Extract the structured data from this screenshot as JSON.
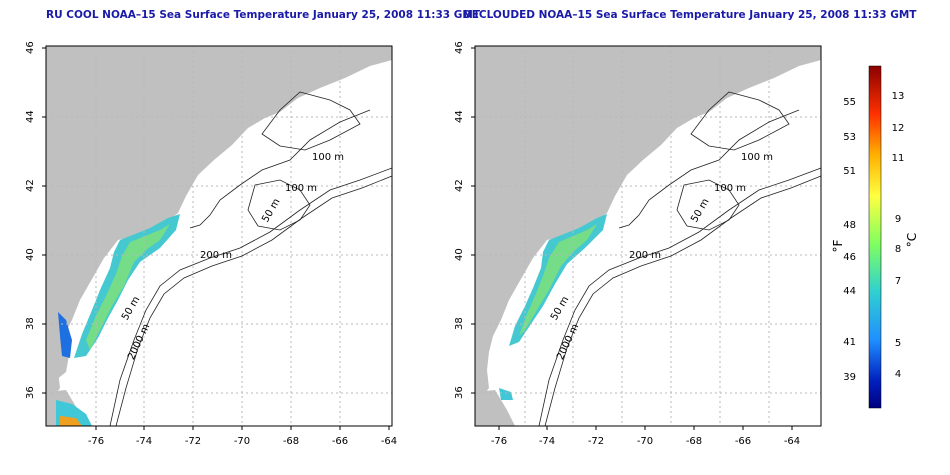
{
  "left_panel": {
    "title": "RU COOL NOAA–15 Sea Surface Temperature January 25, 2008 11:33 GMT"
  },
  "right_panel": {
    "title": "DECLOUDED NOAA–15 Sea Surface Temperature January 25, 2008 11:33 GMT"
  },
  "axes": {
    "x_ticks": [
      "-76",
      "-74",
      "-72",
      "-70",
      "-68",
      "-66",
      "-64"
    ],
    "y_ticks": [
      "36",
      "38",
      "40",
      "42",
      "44",
      "46"
    ],
    "x_range": [
      -77,
      -63
    ],
    "y_range": [
      35,
      46
    ]
  },
  "contours": {
    "labels": [
      "100 m",
      "100 m",
      "50 m",
      "200 m",
      "50 m",
      "2000 m"
    ]
  },
  "colorbar": {
    "f_label": "°F",
    "c_label": "°C",
    "f_ticks": [
      "55",
      "53",
      "51",
      "48",
      "46",
      "44",
      "41",
      "39"
    ],
    "c_ticks": [
      "13",
      "12",
      "11",
      "9",
      "8",
      "7",
      "5",
      "4"
    ],
    "colors": [
      "#8b0000",
      "#ff3000",
      "#ffb000",
      "#ffff40",
      "#80ff60",
      "#30d0d0",
      "#2090ff",
      "#0020c0",
      "#000080"
    ]
  },
  "map_colors": {
    "land": "#c0c0c0",
    "ocean": "#ffffff",
    "grid": "#b8b8b8",
    "contour": "#222222"
  }
}
